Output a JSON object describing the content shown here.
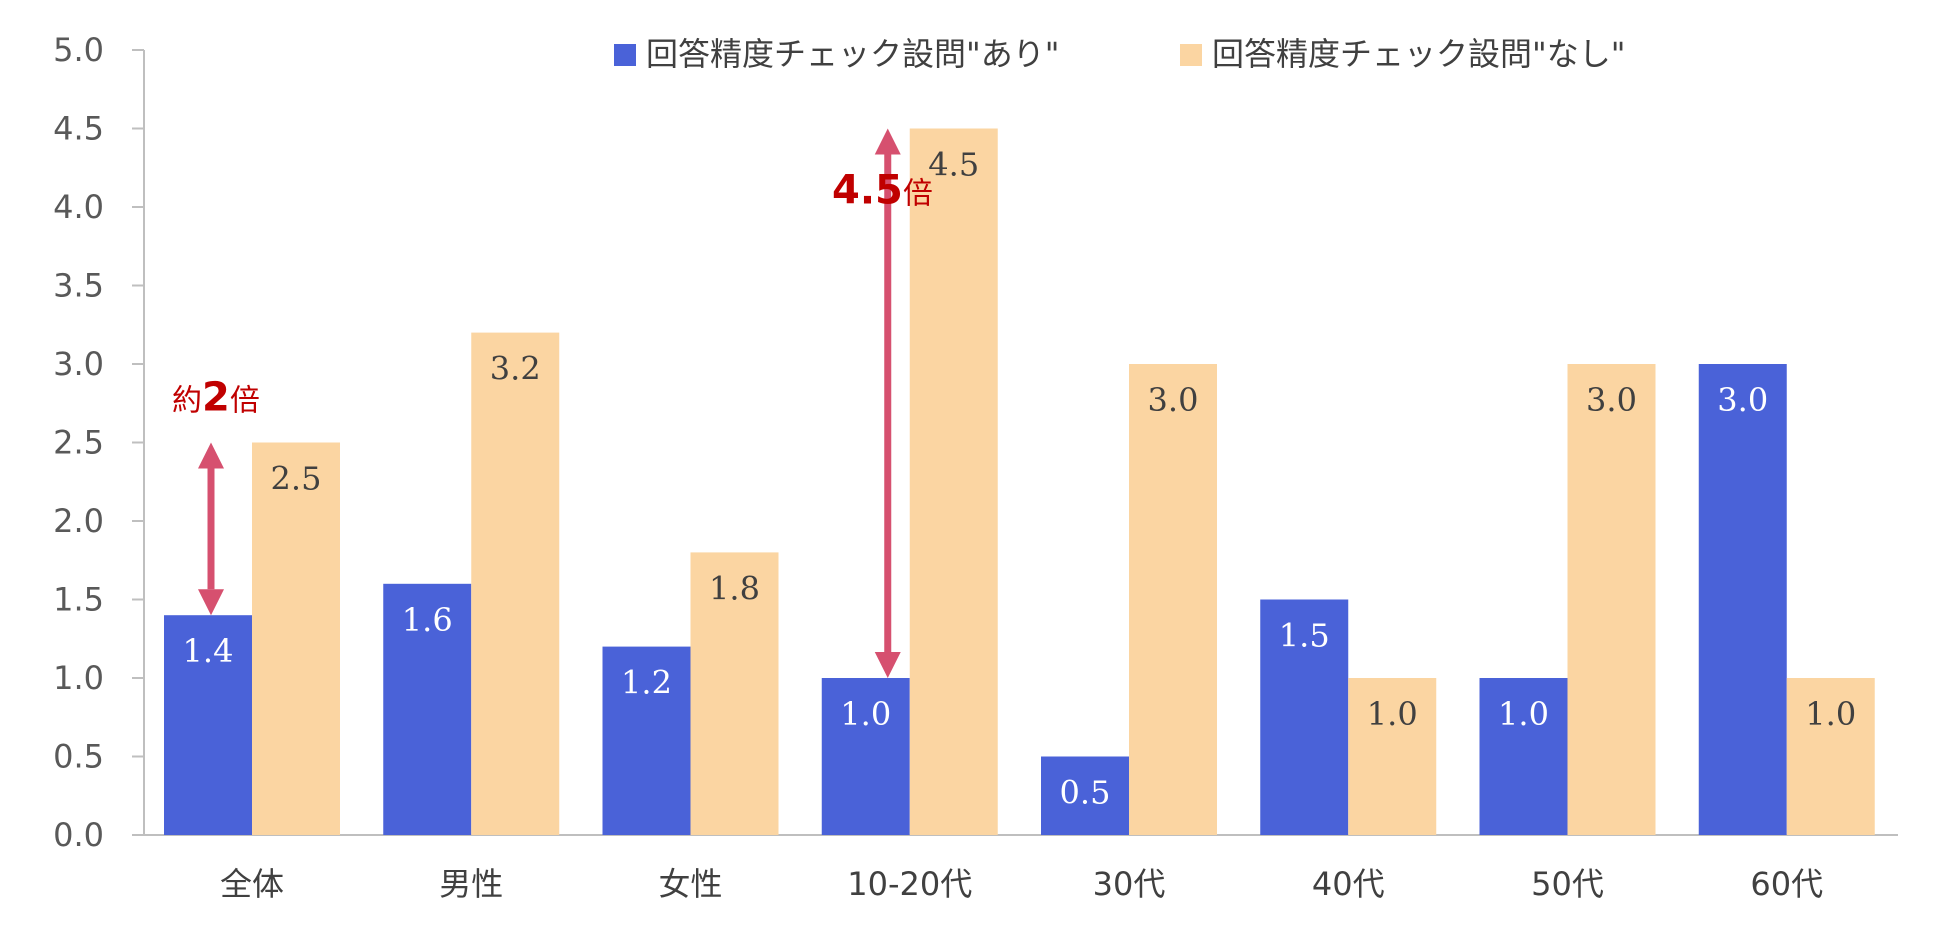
{
  "chart_data": {
    "type": "bar",
    "categories": [
      "全体",
      "男性",
      "女性",
      "10-20代",
      "30代",
      "40代",
      "50代",
      "60代"
    ],
    "series": [
      {
        "name": "回答精度チェック設問\"あり\"",
        "values": [
          1.4,
          1.6,
          1.2,
          1.0,
          0.5,
          1.5,
          1.0,
          3.0
        ],
        "color": "#4a62d8"
      },
      {
        "name": "回答精度チェック設問\"なし\"",
        "values": [
          2.5,
          3.2,
          1.8,
          4.5,
          3.0,
          1.0,
          3.0,
          1.0
        ],
        "color": "#fbd5a2"
      }
    ],
    "ylim": [
      0,
      5.0
    ],
    "yticks": [
      "0.0",
      "0.5",
      "1.0",
      "1.5",
      "2.0",
      "2.5",
      "3.0",
      "3.5",
      "4.0",
      "4.5",
      "5.0"
    ],
    "data_labels": [
      [
        "1.4",
        "1.6",
        "1.2",
        "1.0",
        "0.5",
        "1.5",
        "1.0",
        "3.0"
      ],
      [
        "2.5",
        "3.2",
        "1.8",
        "4.5",
        "3.0",
        "1.0",
        "3.0",
        "1.0"
      ]
    ],
    "grid": false,
    "legend_position": "top",
    "annotations": [
      {
        "category_index": 0,
        "from": 1.4,
        "to": 2.5,
        "prefix": "約",
        "value": "2",
        "suffix": "倍"
      },
      {
        "category_index": 3,
        "from": 1.0,
        "to": 4.5,
        "prefix": "",
        "value": "4.5",
        "suffix": "倍"
      }
    ],
    "arrow_color": "#d6506f",
    "annotation_color": "#c00000"
  }
}
